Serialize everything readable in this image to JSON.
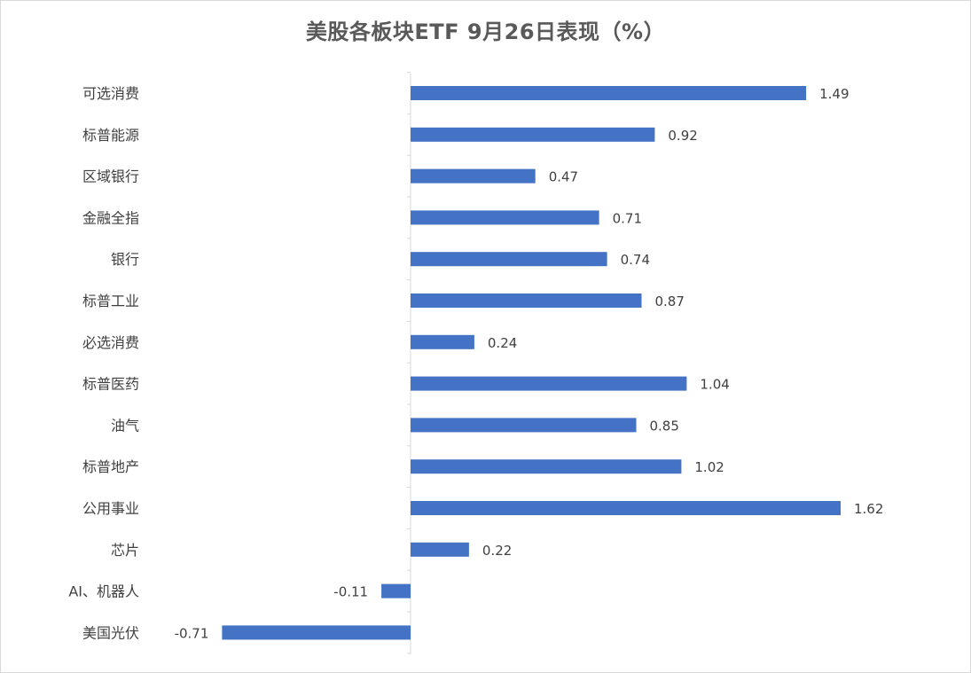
{
  "chart_data": {
    "type": "bar",
    "orientation": "horizontal",
    "title": "美股各板块ETF  9月26日表现（%）",
    "categories": [
      "可选消费",
      "标普能源",
      "区域银行",
      "金融全指",
      "银行",
      "标普工业",
      "必选消费",
      "标普医药",
      "油气",
      "标普地产",
      "公用事业",
      "芯片",
      "AI、机器人",
      "美国光伏"
    ],
    "values": [
      1.49,
      0.92,
      0.47,
      0.71,
      0.74,
      0.87,
      0.24,
      1.04,
      0.85,
      1.02,
      1.62,
      0.22,
      -0.11,
      -0.71
    ],
    "value_labels": [
      "1.49",
      "0.92",
      "0.47",
      "0.71",
      "0.74",
      "0.87",
      "0.24",
      "1.04",
      "0.85",
      "1.02",
      "1.62",
      "0.22",
      "-0.11",
      "-0.71"
    ],
    "bar_color": "#4472c4",
    "xlabel": "",
    "ylabel": "",
    "legend": "none",
    "grid": false
  }
}
